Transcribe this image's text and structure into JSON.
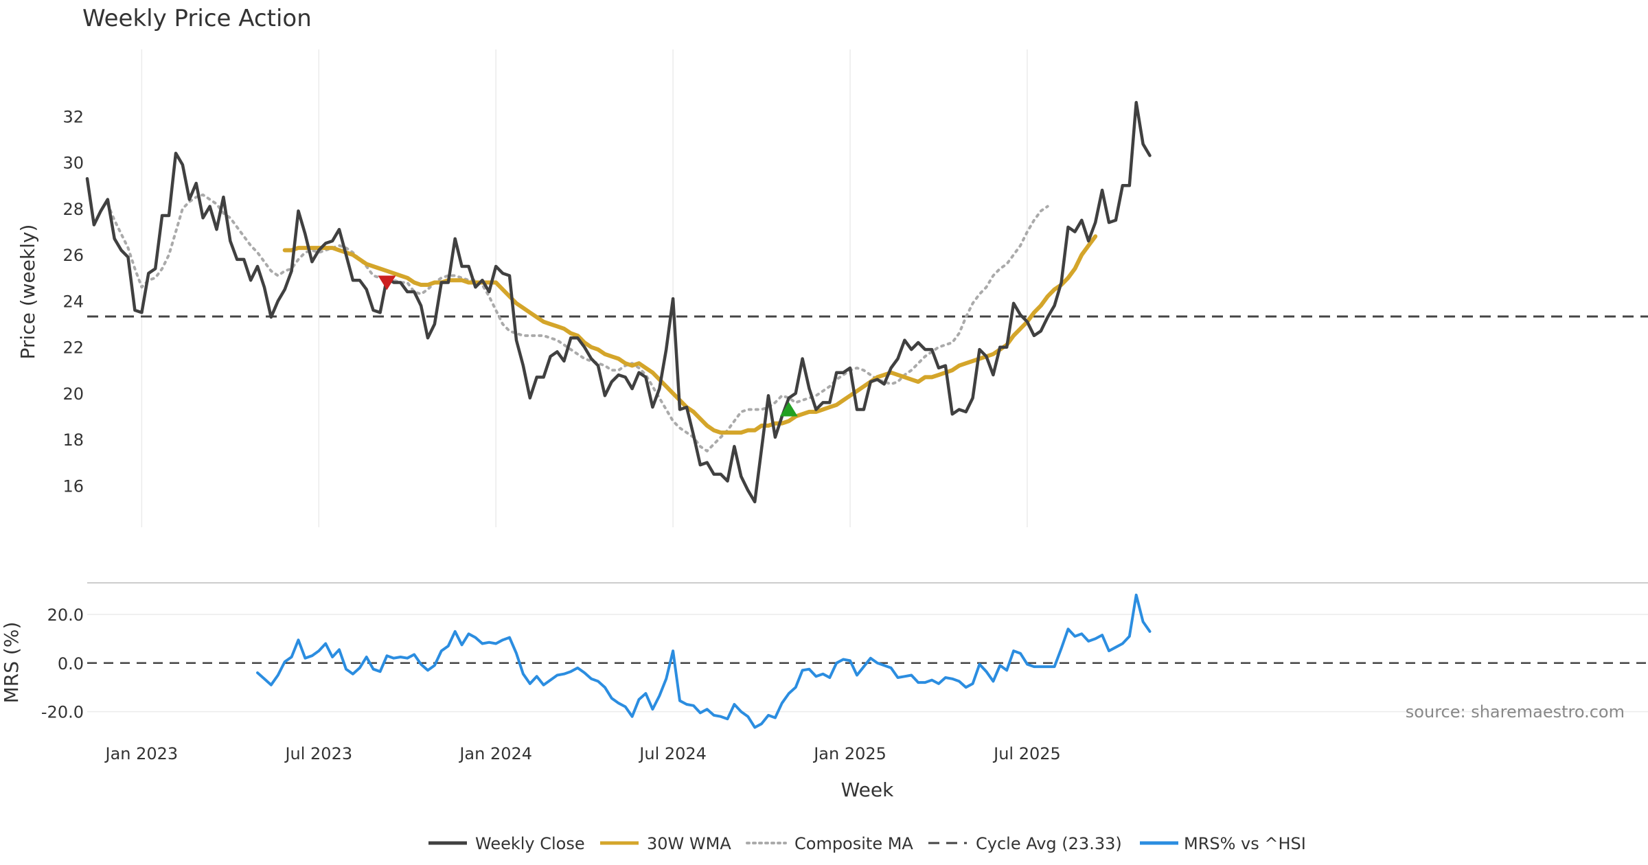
{
  "chart_data": {
    "type": "line",
    "title": "Weekly Price Action",
    "source": "source: sharemaestro.com",
    "xlabel": "Week",
    "x_ticks": [
      "Jan 2023",
      "Jul 2023",
      "Jan 2024",
      "Jul 2024",
      "Jan 2025",
      "Jul 2025"
    ],
    "x_tick_weeks": [
      8,
      34,
      60,
      86,
      112,
      138
    ],
    "price_panel": {
      "ylabel": "Price (weekly)",
      "ylim": [
        14.2,
        34.6
      ],
      "yticks": [
        16,
        18,
        20,
        22,
        24,
        26,
        28,
        30,
        32
      ],
      "cycle_avg": 23.33
    },
    "mrs_panel": {
      "ylabel": "MRS (%)",
      "ylim": [
        -30,
        33
      ],
      "yticks": [
        20,
        0,
        -20
      ],
      "ytick_labels": [
        "20.0",
        "0.0",
        "-20.0"
      ],
      "zero_line": 0
    },
    "series": [
      {
        "name": "Weekly Close",
        "color": "#404040",
        "style": "solid",
        "panel": "price",
        "start_week": 0,
        "values": [
          29.3,
          27.3,
          27.9,
          28.4,
          26.7,
          26.2,
          25.9,
          23.6,
          23.5,
          25.2,
          25.4,
          27.7,
          27.7,
          30.4,
          29.9,
          28.4,
          29.1,
          27.6,
          28.1,
          27.1,
          28.5,
          26.6,
          25.8,
          25.8,
          24.9,
          25.5,
          24.6,
          23.3,
          24.0,
          24.5,
          25.3,
          27.9,
          26.9,
          25.7,
          26.2,
          26.5,
          26.6,
          27.1,
          26.0,
          24.9,
          24.9,
          24.5,
          23.6,
          23.5,
          25.0,
          24.8,
          24.8,
          24.4,
          24.4,
          23.8,
          22.4,
          23.0,
          24.8,
          24.8,
          26.7,
          25.5,
          25.5,
          24.6,
          24.9,
          24.4,
          25.5,
          25.2,
          25.1,
          22.3,
          21.2,
          19.8,
          20.7,
          20.7,
          21.6,
          21.8,
          21.4,
          22.4,
          22.4,
          22.0,
          21.5,
          21.2,
          19.9,
          20.5,
          20.8,
          20.7,
          20.2,
          20.9,
          20.7,
          19.4,
          20.2,
          21.9,
          24.1,
          19.3,
          19.4,
          18.2,
          16.9,
          17.0,
          16.5,
          16.5,
          16.2,
          17.7,
          16.4,
          15.8,
          15.3,
          17.6,
          19.9,
          18.1,
          19.0,
          19.8,
          20.0,
          21.5,
          20.2,
          19.3,
          19.6,
          19.6,
          20.9,
          20.9,
          21.1,
          19.3,
          19.3,
          20.5,
          20.6,
          20.4,
          21.1,
          21.5,
          22.3,
          21.9,
          22.2,
          21.9,
          21.9,
          21.1,
          21.2,
          19.1,
          19.3,
          19.2,
          19.8,
          21.9,
          21.6,
          20.8,
          22.0,
          22.0,
          23.9,
          23.4,
          23.1,
          22.5,
          22.7,
          23.3,
          23.8,
          24.8,
          27.2,
          27.0,
          27.5,
          26.6,
          27.4,
          28.8,
          27.4,
          27.5,
          29.0,
          29.0,
          32.6,
          30.8,
          30.3
        ]
      },
      {
        "name": "30W WMA",
        "color": "#d4a52a",
        "style": "solid",
        "panel": "price",
        "start_week": 29,
        "values": [
          26.2,
          26.2,
          26.3,
          26.3,
          26.3,
          26.3,
          26.3,
          26.3,
          26.2,
          26.1,
          26.0,
          25.8,
          25.6,
          25.5,
          25.4,
          25.3,
          25.2,
          25.1,
          25.0,
          24.8,
          24.7,
          24.7,
          24.8,
          24.8,
          24.9,
          24.9,
          24.9,
          24.8,
          24.8,
          24.8,
          24.8,
          24.8,
          24.5,
          24.2,
          23.9,
          23.7,
          23.5,
          23.3,
          23.1,
          23.0,
          22.9,
          22.8,
          22.6,
          22.5,
          22.2,
          22.0,
          21.9,
          21.7,
          21.6,
          21.5,
          21.3,
          21.2,
          21.3,
          21.1,
          20.9,
          20.6,
          20.3,
          20.0,
          19.7,
          19.4,
          19.2,
          18.9,
          18.6,
          18.4,
          18.3,
          18.3,
          18.3,
          18.3,
          18.4,
          18.4,
          18.6,
          18.6,
          18.7,
          18.7,
          18.8,
          19.0,
          19.1,
          19.2,
          19.2,
          19.3,
          19.4,
          19.5,
          19.7,
          19.9,
          20.1,
          20.3,
          20.5,
          20.7,
          20.8,
          20.9,
          20.8,
          20.7,
          20.6,
          20.5,
          20.7,
          20.7,
          20.8,
          20.9,
          21.0,
          21.2,
          21.3,
          21.4,
          21.5,
          21.6,
          21.7,
          21.9,
          22.1,
          22.5,
          22.8,
          23.1,
          23.5,
          23.8,
          24.2,
          24.5,
          24.7,
          25.0,
          25.4,
          26.0,
          26.4,
          26.8
        ]
      },
      {
        "name": "Composite MA",
        "color": "#aaaaaa",
        "style": "dotted",
        "panel": "price",
        "start_week": 3,
        "values": [
          28.2,
          27.5,
          26.9,
          26.3,
          25.4,
          24.6,
          24.9,
          25.0,
          25.4,
          26.0,
          27.0,
          28.0,
          28.3,
          28.5,
          28.6,
          28.4,
          28.2,
          27.8,
          27.6,
          27.2,
          26.8,
          26.4,
          26.1,
          25.7,
          25.3,
          25.1,
          25.3,
          25.4,
          25.8,
          26.1,
          26.2,
          26.1,
          26.2,
          26.3,
          26.4,
          26.3,
          26.1,
          25.8,
          25.5,
          25.1,
          25.0,
          25.0,
          24.9,
          24.8,
          24.8,
          24.4,
          24.3,
          24.5,
          24.8,
          25.0,
          25.1,
          25.1,
          25.0,
          24.9,
          24.9,
          24.7,
          24.2,
          23.6,
          23.0,
          22.7,
          22.6,
          22.5,
          22.5,
          22.5,
          22.5,
          22.4,
          22.3,
          22.1,
          21.9,
          21.7,
          21.5,
          21.4,
          21.3,
          21.2,
          21.0,
          21.0,
          21.2,
          21.3,
          21.1,
          20.8,
          20.3,
          19.8,
          19.3,
          18.8,
          18.5,
          18.3,
          18.1,
          17.7,
          17.5,
          17.8,
          18.1,
          18.4,
          18.8,
          19.2,
          19.3,
          19.3,
          19.3,
          19.4,
          19.6,
          19.9,
          19.8,
          19.6,
          19.7,
          19.8,
          19.9,
          20.1,
          20.3,
          20.6,
          20.8,
          21.0,
          21.1,
          21.0,
          20.8,
          20.6,
          20.5,
          20.4,
          20.5,
          20.8,
          21.0,
          21.3,
          21.6,
          21.8,
          22.0,
          22.1,
          22.2,
          22.6,
          23.3,
          23.9,
          24.3,
          24.6,
          25.1,
          25.4,
          25.6,
          26.0,
          26.4,
          27.0,
          27.5,
          27.9,
          28.1
        ]
      },
      {
        "name": "MRS% vs ^HSI",
        "color": "#2b8de0",
        "style": "solid",
        "panel": "mrs",
        "start_week": 25,
        "values": [
          -4,
          -6.5,
          -9,
          -5,
          0.5,
          2.5,
          9.5,
          2,
          3,
          5,
          8,
          2.5,
          5.5,
          -2.5,
          -4.5,
          -2,
          2.5,
          -2.5,
          -3.5,
          3,
          2,
          2.5,
          2,
          3.5,
          -0.5,
          -3,
          -1,
          5,
          7,
          13,
          7.5,
          12,
          10.5,
          8,
          8.5,
          8,
          9.5,
          10.5,
          4,
          -4.5,
          -8.5,
          -5.5,
          -9,
          -7,
          -5,
          -4.5,
          -3.5,
          -2,
          -4,
          -6.5,
          -7.5,
          -10,
          -14.5,
          -16.5,
          -18,
          -22,
          -15,
          -12.5,
          -19,
          -13.5,
          -6.5,
          5,
          -15.5,
          -17,
          -17.5,
          -20.5,
          -19,
          -21.5,
          -22,
          -23,
          -17,
          -20,
          -22,
          -26.5,
          -25,
          -21.5,
          -22.5,
          -16.5,
          -12.5,
          -10,
          -3,
          -2.5,
          -5.5,
          -4.5,
          -6,
          0,
          1.5,
          1,
          -5,
          -1.5,
          2,
          0,
          -1,
          -2,
          -6,
          -5.5,
          -5,
          -8,
          -8,
          -7,
          -8.5,
          -6,
          -6.5,
          -7.5,
          -10,
          -8.5,
          -0.5,
          -3.5,
          -7.5,
          -1,
          -3,
          5,
          4,
          -0.5,
          -1.5,
          -1.5,
          -1.5,
          -1.5,
          6,
          14,
          11,
          12,
          9,
          10,
          11.5,
          5,
          6.5,
          8,
          11,
          28,
          17,
          13
        ]
      }
    ],
    "markers": [
      {
        "type": "sell",
        "week": 44,
        "value": 24.8,
        "color": "#cc1f1f"
      },
      {
        "type": "buy",
        "week": 103,
        "value": 19.3,
        "color": "#22a022"
      }
    ],
    "legend": {
      "position": "bottom-center",
      "items": [
        "Weekly Close",
        "30W WMA",
        "Composite MA",
        "Cycle Avg (23.33)",
        "MRS% vs ^HSI"
      ]
    }
  }
}
